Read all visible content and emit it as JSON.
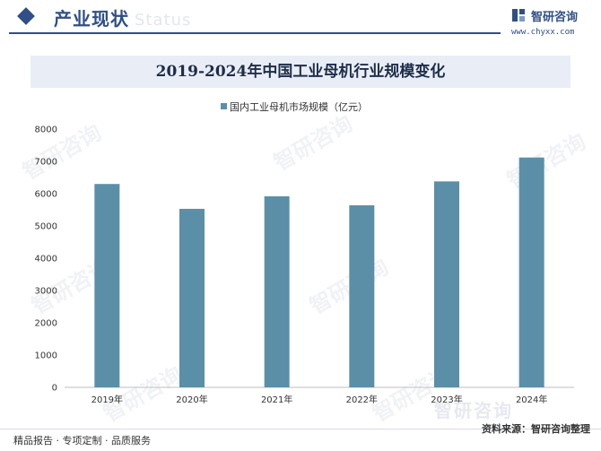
{
  "header": {
    "title": "产业现状",
    "watermark_text": "Status"
  },
  "brand": {
    "name": "智研咨询",
    "url": "www.chyxx.com",
    "logo_icon": "zhiyan-logo-icon",
    "color": "#2f4f86"
  },
  "watermark": {
    "text": "智研咨询"
  },
  "chart_data": {
    "type": "bar",
    "title": "2019-2024年中国工业母机行业规模变化",
    "categories": [
      "2019年",
      "2020年",
      "2021年",
      "2022年",
      "2023年",
      "2024年"
    ],
    "series": [
      {
        "name": "国内工业母机市场规模（亿元）",
        "values": [
          6300,
          5530,
          5920,
          5640,
          6380,
          7120
        ],
        "color": "#5b8fa8"
      }
    ],
    "ylim": [
      0,
      8000
    ],
    "yticks": [
      "0",
      "1000",
      "2000",
      "3000",
      "4000",
      "5000",
      "6000",
      "7000",
      "8000"
    ],
    "legend": "top-center",
    "grid": false
  },
  "footer": {
    "tagline": "精品报告 · 专项定制 · 品质服务",
    "source": "资料来源：智研咨询整理"
  }
}
